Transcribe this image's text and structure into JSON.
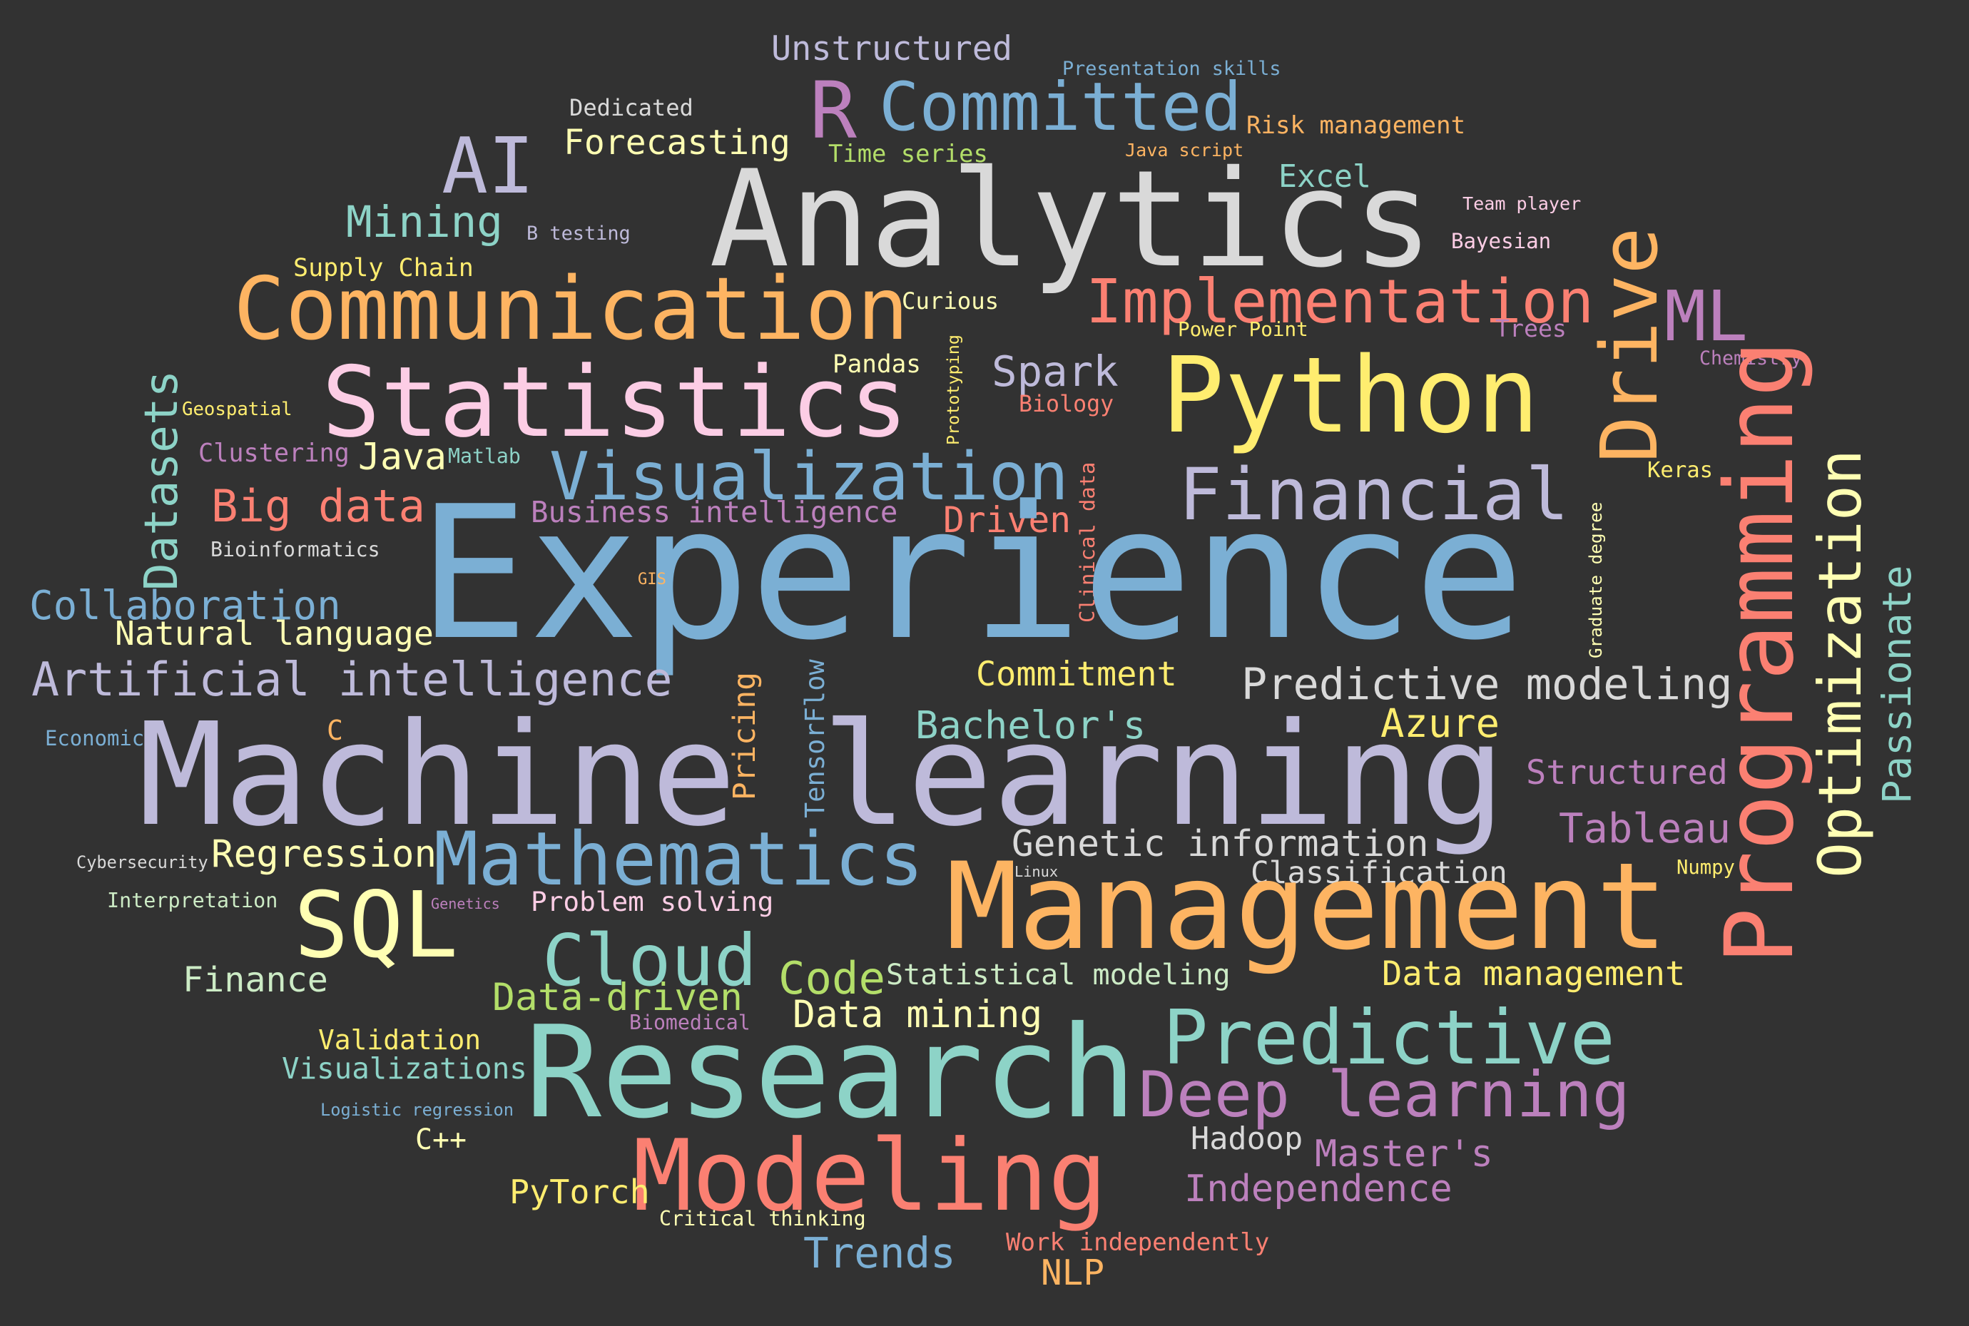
{
  "palette": {
    "background": "#323232",
    "blue": "#7BAFD4",
    "lavender": "#BEBADA",
    "salmon": "#FB8072",
    "orange": "#FDB462",
    "yellow": "#FFED6F",
    "light_yellow": "#FFFFB3",
    "teal": "#8DD3C7",
    "pink": "#FCCDE5",
    "purple": "#BC80BD",
    "light_gray": "#D9D9D9",
    "green": "#CCEBC5",
    "lime": "#B3DE69"
  },
  "words": [
    {
      "text": "Unstructured",
      "color": "#BEBADA"
    },
    {
      "text": "Presentation skills",
      "color": "#7BAFD4"
    },
    {
      "text": "Dedicated",
      "color": "#D9D9D9"
    },
    {
      "text": "R",
      "color": "#BC80BD"
    },
    {
      "text": "Committed",
      "color": "#7BAFD4"
    },
    {
      "text": "Risk management",
      "color": "#FDB462"
    },
    {
      "text": "Forecasting",
      "color": "#FFFFB3"
    },
    {
      "text": "Time series",
      "color": "#B3DE69"
    },
    {
      "text": "Java script",
      "color": "#FDB462"
    },
    {
      "text": "AI",
      "color": "#BEBADA"
    },
    {
      "text": "Excel",
      "color": "#8DD3C7"
    },
    {
      "text": "Analytics",
      "color": "#D9D9D9"
    },
    {
      "text": "Team player",
      "color": "#FCCDE5"
    },
    {
      "text": "Mining",
      "color": "#8DD3C7"
    },
    {
      "text": "B testing",
      "color": "#BEBADA"
    },
    {
      "text": "Bayesian",
      "color": "#FCCDE5"
    },
    {
      "text": "Supply Chain",
      "color": "#FFED6F"
    },
    {
      "text": "Drive",
      "color": "#FDB462"
    },
    {
      "text": "Communication",
      "color": "#FDB462"
    },
    {
      "text": "Curious",
      "color": "#FFFFB3"
    },
    {
      "text": "Implementation",
      "color": "#FB8072"
    },
    {
      "text": "ML",
      "color": "#BC80BD"
    },
    {
      "text": "Power Point",
      "color": "#FFED6F"
    },
    {
      "text": "Trees",
      "color": "#BC80BD"
    },
    {
      "text": "Chemistry",
      "color": "#BC80BD"
    },
    {
      "text": "Pandas",
      "color": "#FFFFB3"
    },
    {
      "text": "Prototyping",
      "color": "#FFED6F"
    },
    {
      "text": "Spark",
      "color": "#BEBADA"
    },
    {
      "text": "Python",
      "color": "#FFED6F"
    },
    {
      "text": "Statistics",
      "color": "#FCCDE5"
    },
    {
      "text": "Programming",
      "color": "#FB8072"
    },
    {
      "text": "Geospatial",
      "color": "#FFED6F"
    },
    {
      "text": "Biology",
      "color": "#FB8072"
    },
    {
      "text": "Datasets",
      "color": "#8DD3C7"
    },
    {
      "text": "Clustering",
      "color": "#BC80BD"
    },
    {
      "text": "Java",
      "color": "#FFFFB3"
    },
    {
      "text": "Matlab",
      "color": "#8DD3C7"
    },
    {
      "text": "Visualization",
      "color": "#7BAFD4"
    },
    {
      "text": "Optimization",
      "color": "#FFFFB3"
    },
    {
      "text": "Keras",
      "color": "#FFED6F"
    },
    {
      "text": "Clinical data",
      "color": "#FB8072"
    },
    {
      "text": "Financial",
      "color": "#BEBADA"
    },
    {
      "text": "Big data",
      "color": "#FB8072"
    },
    {
      "text": "Business intelligence",
      "color": "#BC80BD"
    },
    {
      "text": "Driven",
      "color": "#FB8072"
    },
    {
      "text": "Graduate degree",
      "color": "#FFFFB3"
    },
    {
      "text": "Bioinformatics",
      "color": "#D9D9D9"
    },
    {
      "text": "Passionate",
      "color": "#8DD3C7"
    },
    {
      "text": "Experience",
      "color": "#7BAFD4"
    },
    {
      "text": "GIS",
      "color": "#FDB462"
    },
    {
      "text": "Collaboration",
      "color": "#7BAFD4"
    },
    {
      "text": "Natural language",
      "color": "#FFFFB3"
    },
    {
      "text": "Commitment",
      "color": "#FFED6F"
    },
    {
      "text": "Artificial intelligence",
      "color": "#BEBADA"
    },
    {
      "text": "Predictive modeling",
      "color": "#D9D9D9"
    },
    {
      "text": "Pricing",
      "color": "#FDB462"
    },
    {
      "text": "TensorFlow",
      "color": "#7BAFD4"
    },
    {
      "text": "Bachelor's",
      "color": "#8DD3C7"
    },
    {
      "text": "Azure",
      "color": "#FFED6F"
    },
    {
      "text": "Economic",
      "color": "#7BAFD4"
    },
    {
      "text": "C",
      "color": "#FDB462"
    },
    {
      "text": "Machine learning",
      "color": "#BEBADA"
    },
    {
      "text": "Structured",
      "color": "#BC80BD"
    },
    {
      "text": "Tableau",
      "color": "#BC80BD"
    },
    {
      "text": "Genetic information",
      "color": "#D9D9D9"
    },
    {
      "text": "Cybersecurity",
      "color": "#D9D9D9"
    },
    {
      "text": "Regression",
      "color": "#FFFFB3"
    },
    {
      "text": "Mathematics",
      "color": "#7BAFD4"
    },
    {
      "text": "Linux",
      "color": "#D9D9D9"
    },
    {
      "text": "Classification",
      "color": "#D9D9D9"
    },
    {
      "text": "Numpy",
      "color": "#FFED6F"
    },
    {
      "text": "Interpretation",
      "color": "#CCEBC5"
    },
    {
      "text": "Genetics",
      "color": "#BC80BD"
    },
    {
      "text": "Problem solving",
      "color": "#FCCDE5"
    },
    {
      "text": "SQL",
      "color": "#FFFFB3"
    },
    {
      "text": "Management",
      "color": "#FDB462"
    },
    {
      "text": "Cloud",
      "color": "#8DD3C7"
    },
    {
      "text": "Finance",
      "color": "#CCEBC5"
    },
    {
      "text": "Code",
      "color": "#B3DE69"
    },
    {
      "text": "Statistical modeling",
      "color": "#CCEBC5"
    },
    {
      "text": "Data management",
      "color": "#FFED6F"
    },
    {
      "text": "Data-driven",
      "color": "#B3DE69"
    },
    {
      "text": "Data mining",
      "color": "#FFFFB3"
    },
    {
      "text": "Biomedical",
      "color": "#BC80BD"
    },
    {
      "text": "Validation",
      "color": "#FFED6F"
    },
    {
      "text": "Predictive",
      "color": "#8DD3C7"
    },
    {
      "text": "Research",
      "color": "#8DD3C7"
    },
    {
      "text": "Visualizations",
      "color": "#8DD3C7"
    },
    {
      "text": "Deep learning",
      "color": "#BC80BD"
    },
    {
      "text": "Logistic regression",
      "color": "#7BAFD4"
    },
    {
      "text": "Hadoop",
      "color": "#D9D9D9"
    },
    {
      "text": "C++",
      "color": "#FFFFB3"
    },
    {
      "text": "Master's",
      "color": "#BC80BD"
    },
    {
      "text": "Modeling",
      "color": "#FB8072"
    },
    {
      "text": "Independence",
      "color": "#BC80BD"
    },
    {
      "text": "PyTorch",
      "color": "#FFED6F"
    },
    {
      "text": "Critical thinking",
      "color": "#FFFFB3"
    },
    {
      "text": "Trends",
      "color": "#7BAFD4"
    },
    {
      "text": "Work independently",
      "color": "#FB8072"
    },
    {
      "text": "NLP",
      "color": "#FDB462"
    }
  ]
}
